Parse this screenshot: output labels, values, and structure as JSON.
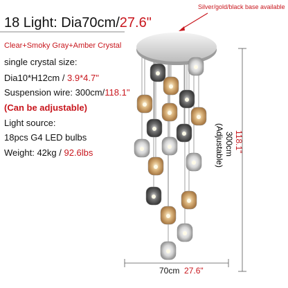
{
  "header": {
    "title": "18 Light: Dia70cm/",
    "title_imperial": "27.6\"",
    "base_note": "Silver/gold/black base available"
  },
  "specs": {
    "crystal": "Clear+Smoky Gray+Amber Crystal",
    "size_label": "single crystal size:",
    "size_metric": "Dia10*H12cm / ",
    "size_imperial": "3.9*4.7\"",
    "wire_metric": "Suspension wire: 300cm/",
    "wire_imperial": "118.1\"",
    "adjustable": "(Can be adjustable)",
    "source_label": "Light source:",
    "bulbs": "18pcs G4 LED bulbs",
    "weight_metric": "Weight: 42kg / ",
    "weight_imperial": "92.6lbs"
  },
  "dimensions": {
    "height_imperial": "118.1\"",
    "height_metric": "300cm",
    "height_note": "(Adjustable)",
    "width_metric": "70cm",
    "width_imperial": "27.6\""
  }
}
